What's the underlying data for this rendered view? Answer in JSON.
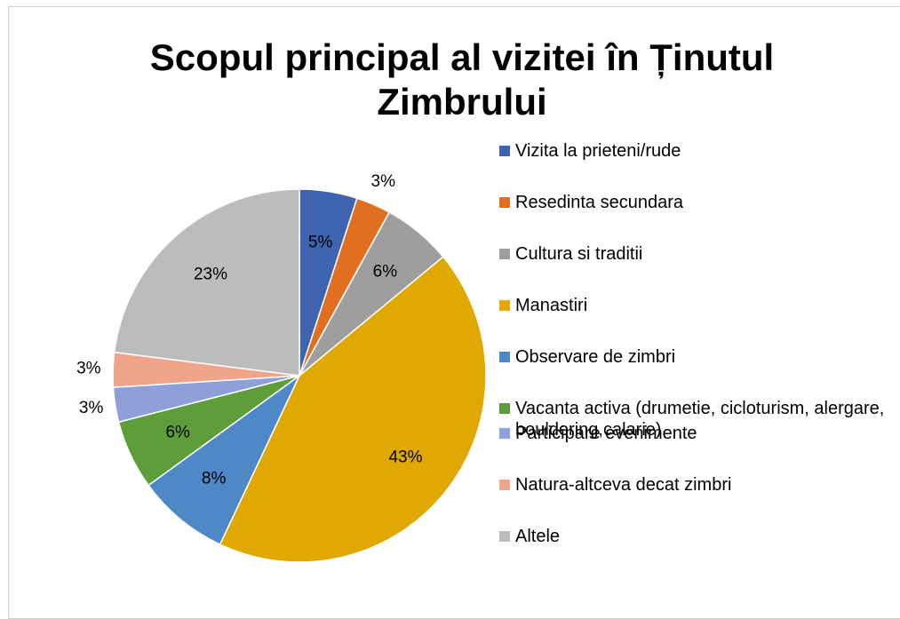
{
  "chart_data": {
    "type": "pie",
    "title": "Scopul principal al vizitei în Ținutul Zimbrului",
    "categories": [
      "Vizita la prieteni/rude",
      "Resedinta secundara",
      "Cultura si traditii",
      "Manastiri",
      "Observare de zimbri",
      "Vacanta activa (drumetie, cicloturism, alergare, bouldering,calarie)",
      "Participare evenimente",
      "Natura-altceva decat zimbri",
      "Altele"
    ],
    "values": [
      5,
      3,
      6,
      43,
      8,
      6,
      3,
      3,
      23
    ],
    "value_labels": [
      "5%",
      "3%",
      "6%",
      "43%",
      "8%",
      "6%",
      "3%",
      "3%",
      "23%"
    ],
    "colors": [
      "#3e64b0",
      "#e07020",
      "#9e9e9e",
      "#e0a800",
      "#4f88c6",
      "#5e9e3a",
      "#8fa0d8",
      "#f0a58a",
      "#bcbcbc"
    ],
    "legend": "right"
  }
}
